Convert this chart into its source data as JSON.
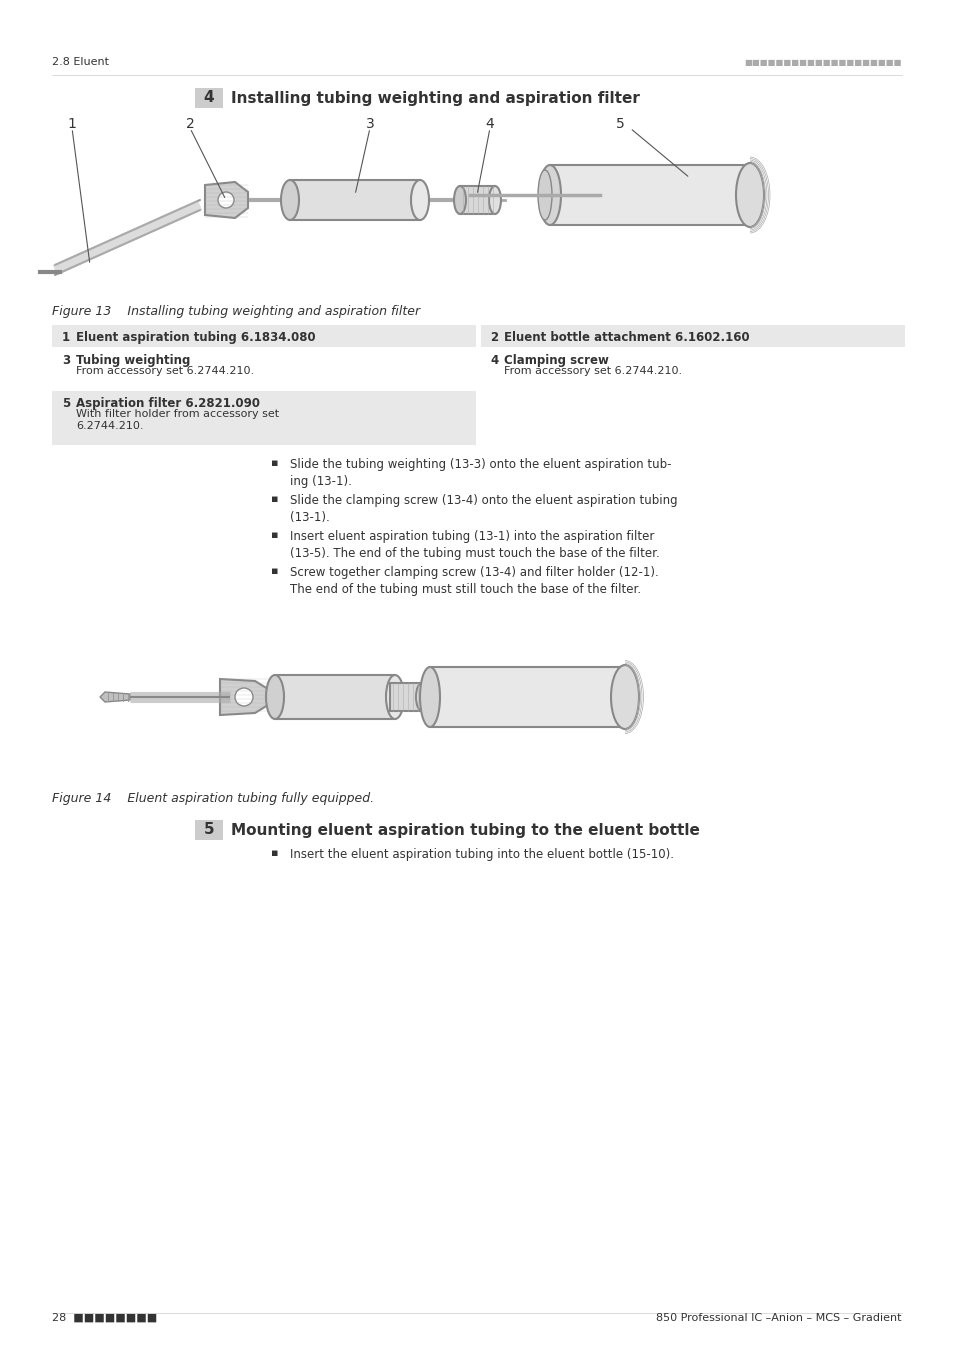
{
  "bg_color": "#ffffff",
  "header_left": "2.8 Eluent",
  "header_right_dots": "■■■■■■■■■■■■■■■■■■■■■",
  "footer_left": "28  ■■■■■■■■",
  "footer_right": "850 Professional IC –Anion – MCS – Gradient",
  "figure4_heading_num": "4",
  "figure4_heading_text": "Installing tubing weighting and aspiration filter",
  "figure4_labels": [
    "1",
    "2",
    "3",
    "4",
    "5"
  ],
  "fig13_caption": "Figure 13    Installing tubing weighting and aspiration filter",
  "fig14_caption": "Figure 14    Eluent aspiration tubing fully equipped.",
  "figure5_heading_num": "5",
  "figure5_heading_text": "Mounting eluent aspiration tubing to the eluent bottle",
  "table_rows": [
    {
      "num": "1",
      "bold_text": "Eluent aspiration tubing 6.1834.080",
      "col": 1
    },
    {
      "num": "2",
      "bold_text": "Eluent bottle attachment 6.1602.160",
      "col": 2
    },
    {
      "num": "3",
      "bold_text": "Tubing weighting",
      "sub_text": "From accessory set 6.2744.210.",
      "col": 1
    },
    {
      "num": "4",
      "bold_text": "Clamping screw",
      "sub_text": "From accessory set 6.2744.210.",
      "col": 2
    },
    {
      "num": "5",
      "bold_text": "Aspiration filter 6.2821.090",
      "sub_text": "With filter holder from accessory set\n6.2744.210.",
      "col": 1
    }
  ],
  "bullet_points": [
    "Slide the tubing weighting (13-\u00033\u0003) onto the eluent aspiration tubing (13-\u00031\u0003).",
    "Slide the clamping screw (13-\u00034\u0003) onto the eluent aspiration tubing\n(13-\u00031\u0003).",
    "Insert eluent aspiration tubing (13-\u00031\u0003) into the aspiration filter\n(13-\u00035\u0003). The end of the tubing must touch the base of the filter.",
    "Screw together clamping screw (13-\u00034\u0003) and filter holder (12-\u00031\u0003).\nThe end of the tubing must still touch the base of the filter."
  ],
  "bullet5": "Insert the eluent aspiration tubing into the eluent bottle (15-\u001010\u0010).",
  "table_bg_odd": "#e8e8e8",
  "table_bg_even": "#ffffff"
}
